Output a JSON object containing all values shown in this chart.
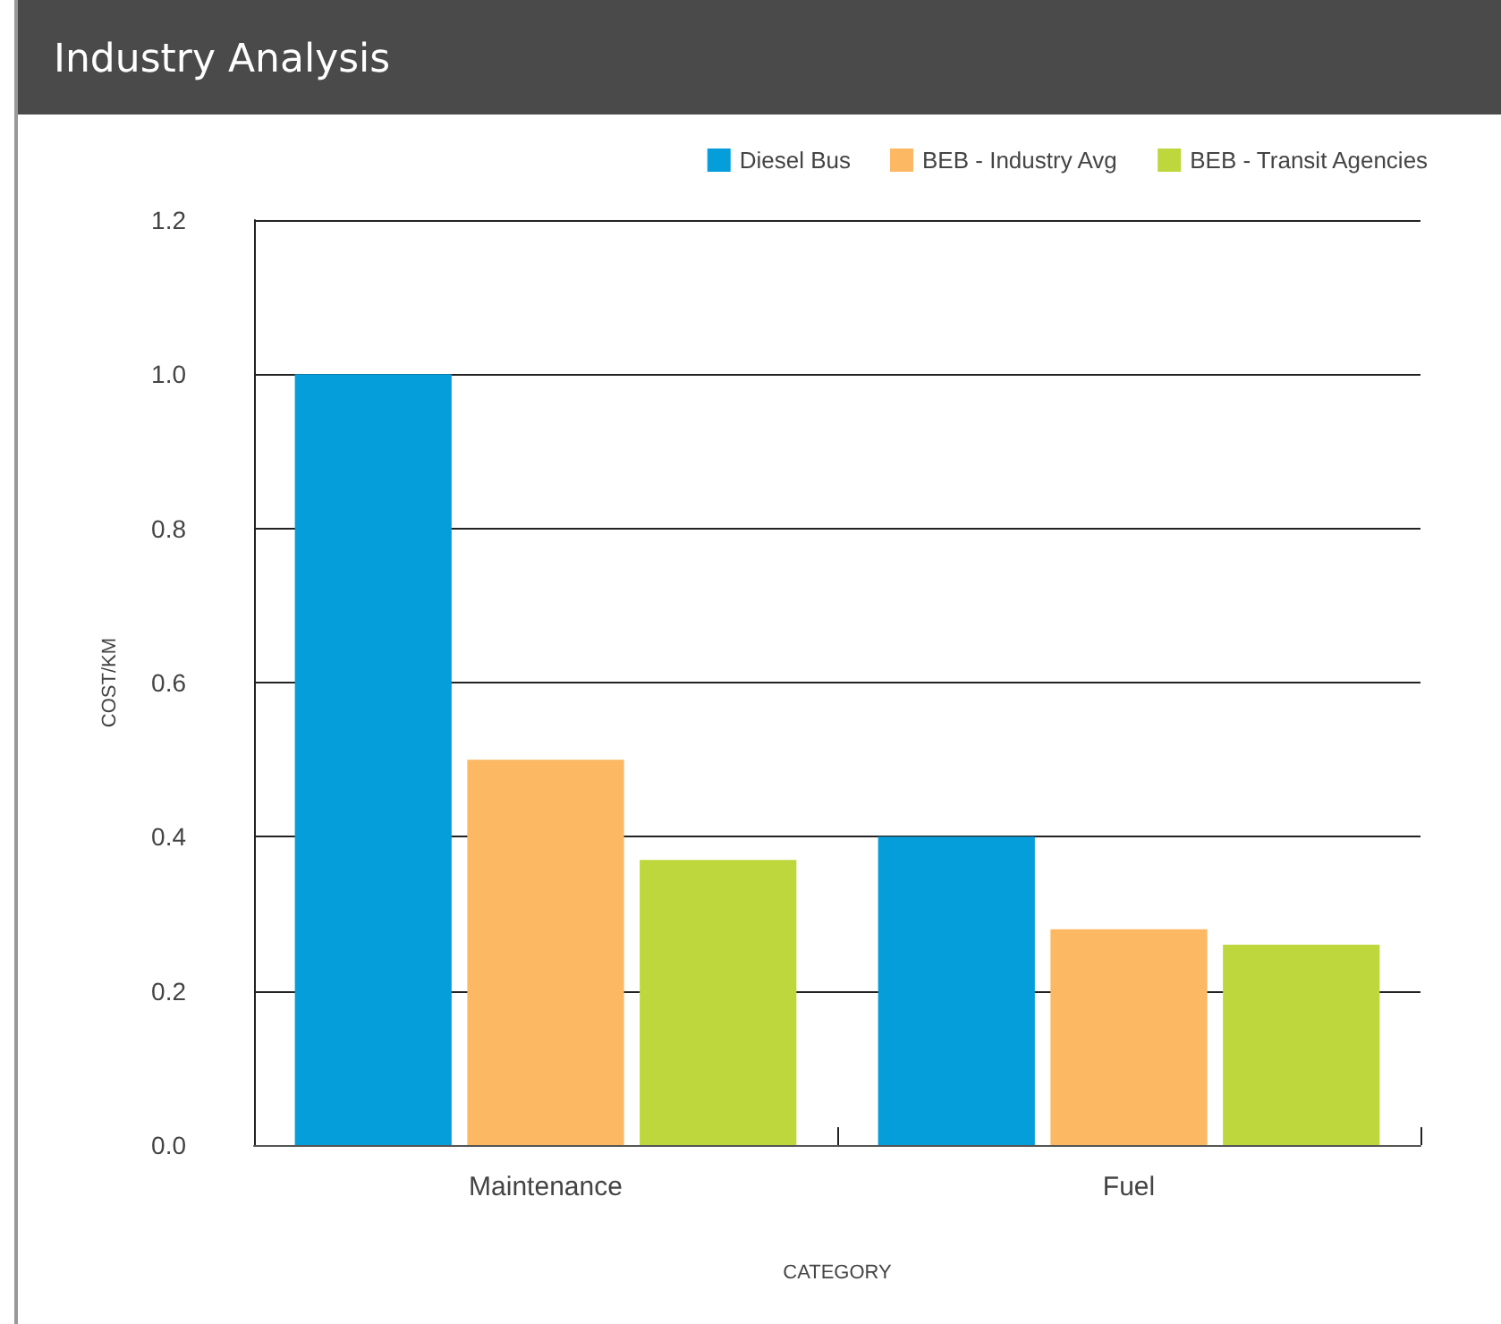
{
  "chart_data": {
    "type": "bar",
    "title": "Industry Analysis",
    "xlabel": "CATEGORY",
    "ylabel": "COST/KM",
    "categories": [
      "Maintenance",
      "Fuel"
    ],
    "series": [
      {
        "name": "Diesel Bus",
        "color": "#069ddb",
        "values": [
          1.0,
          0.4
        ]
      },
      {
        "name": "BEB - Industry Avg",
        "color": "#fcb862",
        "values": [
          0.5,
          0.28
        ]
      },
      {
        "name": "BEB - Transit Agencies",
        "color": "#bed73c",
        "values": [
          0.37,
          0.26
        ]
      }
    ],
    "ylim": [
      0,
      1.2
    ],
    "yticks": [
      {
        "value": 0,
        "label": "0.0"
      },
      0.2,
      0.4,
      0.6,
      0.8,
      {
        "value": 1,
        "label": "1.0"
      },
      1.2
    ],
    "grid": "y",
    "legend": "top right"
  }
}
